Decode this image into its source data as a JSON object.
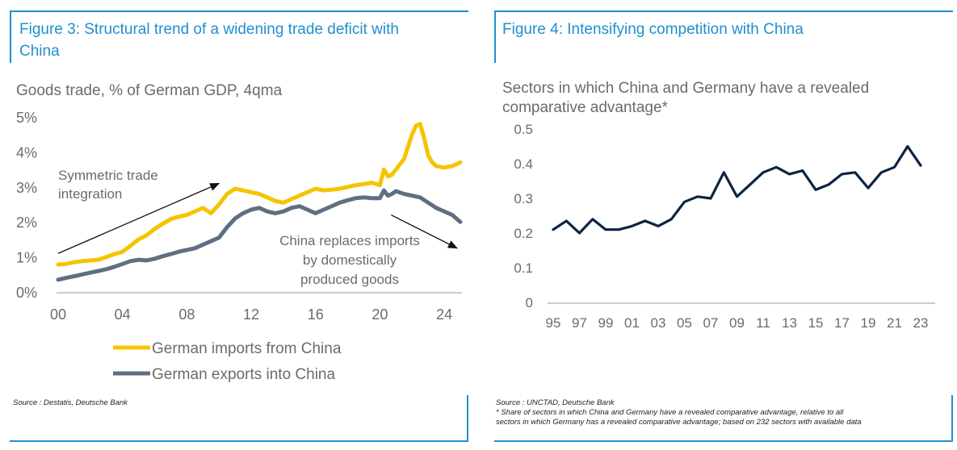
{
  "figure3": {
    "title_line1": "Figure 3: Structural trend of a widening trade deficit with",
    "title_line2": "China",
    "source": "Source : Destatis, Deutsche Bank"
  },
  "figure4": {
    "title": "Figure 4: Intensifying competition with China",
    "source_line1": "Source : UNCTAD, Deutsche Bank",
    "source_line2": "* Share of sectors in which China and Germany have a revealed comparative advantage, relative to all",
    "source_line3": "sectors in which Germany has a revealed comparative advantage; based on 232 sectors with available data"
  },
  "colors": {
    "accent": "#1f8fd1",
    "imports": "#f5c400",
    "exports": "#5f6f82",
    "line4": "#0d2440"
  },
  "chart_data": [
    {
      "type": "line",
      "subtitle": "Goods trade, % of German GDP, 4qma",
      "x_tick_labels": [
        "00",
        "04",
        "08",
        "12",
        "16",
        "20",
        "24"
      ],
      "x_ticks": [
        2000,
        2004,
        2008,
        2012,
        2016,
        2020,
        2024
      ],
      "y_tick_labels": [
        "0%",
        "1%",
        "2%",
        "3%",
        "4%",
        "5%"
      ],
      "y_ticks": [
        0,
        1,
        2,
        3,
        4,
        5
      ],
      "xlim": [
        2000,
        2025
      ],
      "ylim": [
        0,
        5
      ],
      "grid": false,
      "legend_position": "bottom",
      "annotations": [
        {
          "lines": [
            "Symmetric trade",
            "integration"
          ],
          "arrow": {
            "from": [
              2000.0,
              1.1
            ],
            "to": [
              2010.0,
              3.1
            ]
          }
        },
        {
          "lines": [
            "China replaces imports",
            "by domestically",
            "produced goods"
          ],
          "arrow": {
            "from": [
              2020.7,
              2.2
            ],
            "to": [
              2024.8,
              1.25
            ]
          }
        }
      ],
      "series": [
        {
          "name": "German imports from China",
          "color": "#f5c400",
          "x": [
            2000,
            2000.5,
            2001,
            2001.5,
            2002,
            2002.5,
            2003,
            2003.5,
            2004,
            2004.5,
            2005,
            2005.5,
            2006,
            2006.5,
            2007,
            2007.5,
            2008,
            2008.5,
            2009,
            2009.5,
            2010,
            2010.5,
            2011,
            2011.5,
            2012,
            2012.5,
            2013,
            2013.5,
            2014,
            2014.5,
            2015,
            2015.5,
            2016,
            2016.5,
            2017,
            2017.5,
            2018,
            2018.5,
            2019,
            2019.5,
            2020,
            2020.25,
            2020.5,
            2020.75,
            2021,
            2021.5,
            2022,
            2022.25,
            2022.5,
            2022.75,
            2023,
            2023.25,
            2023.5,
            2024,
            2024.5,
            2025
          ],
          "values": [
            0.78,
            0.8,
            0.85,
            0.88,
            0.9,
            0.92,
            1.0,
            1.08,
            1.15,
            1.32,
            1.5,
            1.62,
            1.8,
            1.95,
            2.08,
            2.15,
            2.2,
            2.3,
            2.4,
            2.25,
            2.5,
            2.8,
            2.95,
            2.9,
            2.85,
            2.8,
            2.7,
            2.6,
            2.55,
            2.65,
            2.75,
            2.85,
            2.95,
            2.9,
            2.92,
            2.95,
            3.0,
            3.05,
            3.08,
            3.12,
            3.05,
            3.5,
            3.3,
            3.35,
            3.5,
            3.8,
            4.5,
            4.75,
            4.8,
            4.4,
            3.9,
            3.7,
            3.6,
            3.55,
            3.6,
            3.7
          ]
        },
        {
          "name": "German exports into China",
          "color": "#5f6f82",
          "x": [
            2000,
            2000.5,
            2001,
            2001.5,
            2002,
            2002.5,
            2003,
            2003.5,
            2004,
            2004.5,
            2005,
            2005.5,
            2006,
            2006.5,
            2007,
            2007.5,
            2008,
            2008.5,
            2009,
            2009.5,
            2010,
            2010.5,
            2011,
            2011.5,
            2012,
            2012.5,
            2013,
            2013.5,
            2014,
            2014.5,
            2015,
            2015.5,
            2016,
            2016.5,
            2017,
            2017.5,
            2018,
            2018.5,
            2019,
            2019.5,
            2020,
            2020.25,
            2020.5,
            2020.75,
            2021,
            2021.5,
            2022,
            2022.5,
            2023,
            2023.5,
            2024,
            2024.5,
            2025
          ],
          "values": [
            0.35,
            0.4,
            0.45,
            0.5,
            0.55,
            0.6,
            0.65,
            0.72,
            0.8,
            0.88,
            0.92,
            0.9,
            0.95,
            1.02,
            1.08,
            1.15,
            1.2,
            1.25,
            1.35,
            1.45,
            1.55,
            1.85,
            2.1,
            2.25,
            2.35,
            2.4,
            2.3,
            2.25,
            2.3,
            2.4,
            2.45,
            2.35,
            2.25,
            2.35,
            2.45,
            2.55,
            2.62,
            2.68,
            2.7,
            2.68,
            2.68,
            2.9,
            2.75,
            2.8,
            2.88,
            2.8,
            2.75,
            2.7,
            2.55,
            2.4,
            2.3,
            2.2,
            2.0
          ]
        }
      ]
    },
    {
      "type": "line",
      "subtitle_line1": "Sectors in which China and Germany have a revealed",
      "subtitle_line2": "comparative advantage*",
      "x_tick_labels": [
        "95",
        "97",
        "99",
        "01",
        "03",
        "05",
        "07",
        "09",
        "11",
        "13",
        "15",
        "17",
        "19",
        "21",
        "23"
      ],
      "x_ticks": [
        1995,
        1997,
        1999,
        2001,
        2003,
        2005,
        2007,
        2009,
        2011,
        2013,
        2015,
        2017,
        2019,
        2021,
        2023
      ],
      "y_tick_labels": [
        "0",
        "0.1",
        "0.2",
        "0.3",
        "0.4",
        "0.5"
      ],
      "y_ticks": [
        0,
        0.1,
        0.2,
        0.3,
        0.4,
        0.5
      ],
      "xlim": [
        1995,
        2023
      ],
      "ylim": [
        0,
        0.5
      ],
      "grid": false,
      "series": [
        {
          "color": "#0d2440",
          "x": [
            1995,
            1996,
            1997,
            1998,
            1999,
            2000,
            2001,
            2002,
            2003,
            2004,
            2005,
            2006,
            2007,
            2008,
            2009,
            2010,
            2011,
            2012,
            2013,
            2014,
            2015,
            2016,
            2017,
            2018,
            2019,
            2020,
            2021,
            2022,
            2023
          ],
          "values": [
            0.21,
            0.235,
            0.2,
            0.24,
            0.21,
            0.21,
            0.22,
            0.235,
            0.22,
            0.24,
            0.29,
            0.305,
            0.3,
            0.375,
            0.305,
            0.34,
            0.375,
            0.39,
            0.37,
            0.38,
            0.325,
            0.34,
            0.37,
            0.375,
            0.33,
            0.375,
            0.39,
            0.45,
            0.395
          ]
        }
      ]
    }
  ]
}
